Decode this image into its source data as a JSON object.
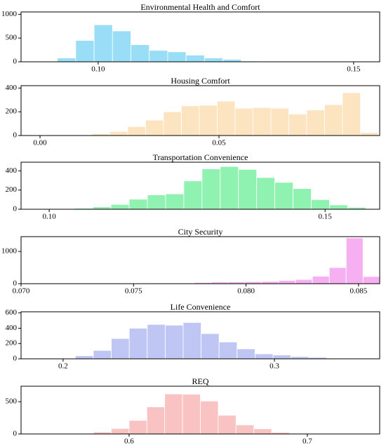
{
  "chart_data": [
    {
      "type": "histogram",
      "title": "Environmental Health and Comfort",
      "color": "#87d8f5",
      "bins": [
        0.092,
        0.0956,
        0.0992,
        0.1028,
        0.1064,
        0.11,
        0.1136,
        0.1172,
        0.1208,
        0.1244,
        0.128,
        0.1316
      ],
      "counts": [
        80,
        450,
        780,
        650,
        360,
        240,
        210,
        140,
        80,
        50,
        15
      ],
      "xlim": [
        0.0849,
        0.1551
      ],
      "ylim": [
        0,
        1050
      ],
      "xticks": [
        {
          "value": 0.1,
          "label": "0.10"
        },
        0.15
      ],
      "yticks": [
        0,
        500,
        1000
      ]
    },
    {
      "type": "histogram",
      "title": "Housing Comfort",
      "color": "#fbdfb5",
      "bins": [
        0.0045,
        0.0095,
        0.0145,
        0.0195,
        0.0245,
        0.0295,
        0.0345,
        0.0395,
        0.0445,
        0.0495,
        0.0545,
        0.0595,
        0.0645,
        0.0695,
        0.0745,
        0.0795,
        0.0845,
        0.0895,
        0.0945
      ],
      "counts": [
        2,
        5,
        15,
        35,
        75,
        130,
        200,
        250,
        255,
        290,
        230,
        235,
        230,
        180,
        215,
        260,
        360,
        25
      ],
      "xlim": [
        -0.0053,
        0.0949
      ],
      "ylim": [
        0,
        420
      ],
      "xticks": [
        {
          "value": 0,
          "label": "0.00"
        },
        0.05
      ],
      "yticks": [
        0,
        200,
        400
      ]
    },
    {
      "type": "histogram",
      "title": "Transportation Convenience",
      "color": "#7cf0a2",
      "bins": [
        0.1013,
        0.1046,
        0.1079,
        0.1112,
        0.1145,
        0.1178,
        0.1211,
        0.1244,
        0.1277,
        0.131,
        0.1343,
        0.1376,
        0.1409,
        0.1442,
        0.1475,
        0.1508,
        0.1541,
        0.1574
      ],
      "counts": [
        2,
        10,
        25,
        50,
        105,
        150,
        160,
        295,
        420,
        445,
        415,
        330,
        280,
        215,
        100,
        45,
        20
      ],
      "xlim": [
        0.0949,
        0.1599
      ],
      "ylim": [
        0,
        490
      ],
      "xticks": [
        {
          "value": 0.1,
          "label": "0.10"
        },
        0.15
      ],
      "yticks": [
        0,
        200,
        400
      ]
    },
    {
      "type": "histogram",
      "title": "City Security",
      "color": "#f5a2ef",
      "bins": [
        0.0762,
        0.07695,
        0.0777,
        0.07845,
        0.0792,
        0.07995,
        0.0807,
        0.08145,
        0.0822,
        0.08295,
        0.0837,
        0.08445,
        0.0852,
        0.08595
      ],
      "counts": [
        10,
        20,
        35,
        50,
        55,
        60,
        70,
        100,
        130,
        230,
        500,
        1420,
        220
      ],
      "xlim": [
        0.07,
        0.08594
      ],
      "ylim": [
        0,
        1460
      ],
      "xticks": [
        {
          "value": 0.07,
          "label": "0.070"
        },
        {
          "value": 0.075,
          "label": "0.075"
        },
        {
          "value": 0.08,
          "label": "0.080"
        },
        {
          "value": 0.085,
          "label": "0.085"
        }
      ],
      "yticks": [
        0,
        1000
      ]
    },
    {
      "type": "histogram",
      "title": "Life Convenience",
      "color": "#b4bcf2",
      "bins": [
        0.1973,
        0.2058,
        0.2143,
        0.2228,
        0.2313,
        0.2398,
        0.2483,
        0.2568,
        0.2653,
        0.2738,
        0.2823,
        0.2908,
        0.2993,
        0.3078,
        0.3163,
        0.3248,
        0.3333,
        0.3418
      ],
      "counts": [
        3,
        40,
        110,
        265,
        400,
        450,
        440,
        475,
        330,
        220,
        130,
        65,
        50,
        30,
        20,
        8,
        3
      ],
      "xlim": [
        0.1801,
        0.3498
      ],
      "ylim": [
        0,
        615
      ],
      "xticks": [
        0.2,
        0.3
      ],
      "yticks": [
        0,
        200,
        400,
        600
      ]
    },
    {
      "type": "histogram",
      "title": "REQ",
      "color": "#f8b8b8",
      "bins": [
        0.57,
        0.58,
        0.59,
        0.6,
        0.61,
        0.62,
        0.63,
        0.64,
        0.65,
        0.66,
        0.67,
        0.68,
        0.69,
        0.7
      ],
      "counts": [
        5,
        30,
        85,
        210,
        420,
        620,
        615,
        510,
        290,
        140,
        80,
        25,
        10
      ],
      "xlim": [
        0.5394,
        0.7406
      ],
      "ylim": [
        0,
        740
      ],
      "xticks": [
        0.6,
        0.7
      ],
      "yticks": [
        0,
        500
      ]
    }
  ]
}
